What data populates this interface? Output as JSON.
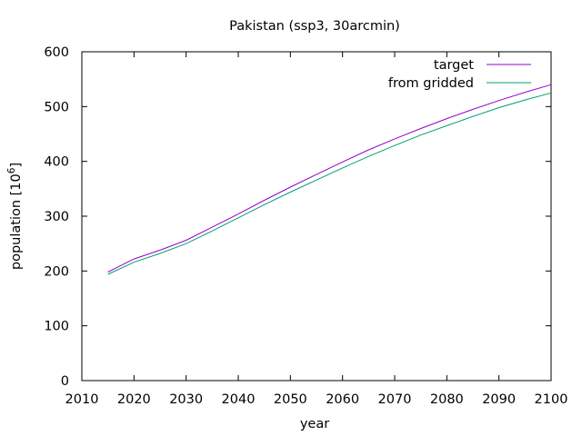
{
  "chart_data": {
    "type": "line",
    "title": "Pakistan (ssp3, 30arcmin)",
    "xlabel": "year",
    "ylabel_main": "population [10",
    "ylabel_exp": "6",
    "ylabel_close": "]",
    "xlim": [
      2010,
      2100
    ],
    "ylim": [
      0,
      600
    ],
    "xticks": [
      2010,
      2020,
      2030,
      2040,
      2050,
      2060,
      2070,
      2080,
      2090,
      2100
    ],
    "yticks": [
      0,
      100,
      200,
      300,
      400,
      500,
      600
    ],
    "grid": false,
    "legend_position": "top-right",
    "series": [
      {
        "name": "target",
        "color": "#9400d3",
        "x": [
          2015,
          2020,
          2025,
          2030,
          2035,
          2040,
          2045,
          2050,
          2055,
          2060,
          2065,
          2070,
          2075,
          2080,
          2085,
          2090,
          2095,
          2100
        ],
        "y": [
          198,
          222,
          238,
          256,
          280,
          304,
          329,
          353,
          376,
          399,
          421,
          441,
          460,
          478,
          495,
          511,
          526,
          540
        ]
      },
      {
        "name": "from gridded",
        "color": "#009e73",
        "x": [
          2015,
          2020,
          2025,
          2030,
          2035,
          2040,
          2045,
          2050,
          2055,
          2060,
          2065,
          2070,
          2075,
          2080,
          2085,
          2090,
          2095,
          2100
        ],
        "y": [
          194,
          216,
          232,
          250,
          273,
          297,
          321,
          344,
          366,
          388,
          409,
          429,
          448,
          465,
          482,
          498,
          512,
          525
        ]
      }
    ]
  }
}
